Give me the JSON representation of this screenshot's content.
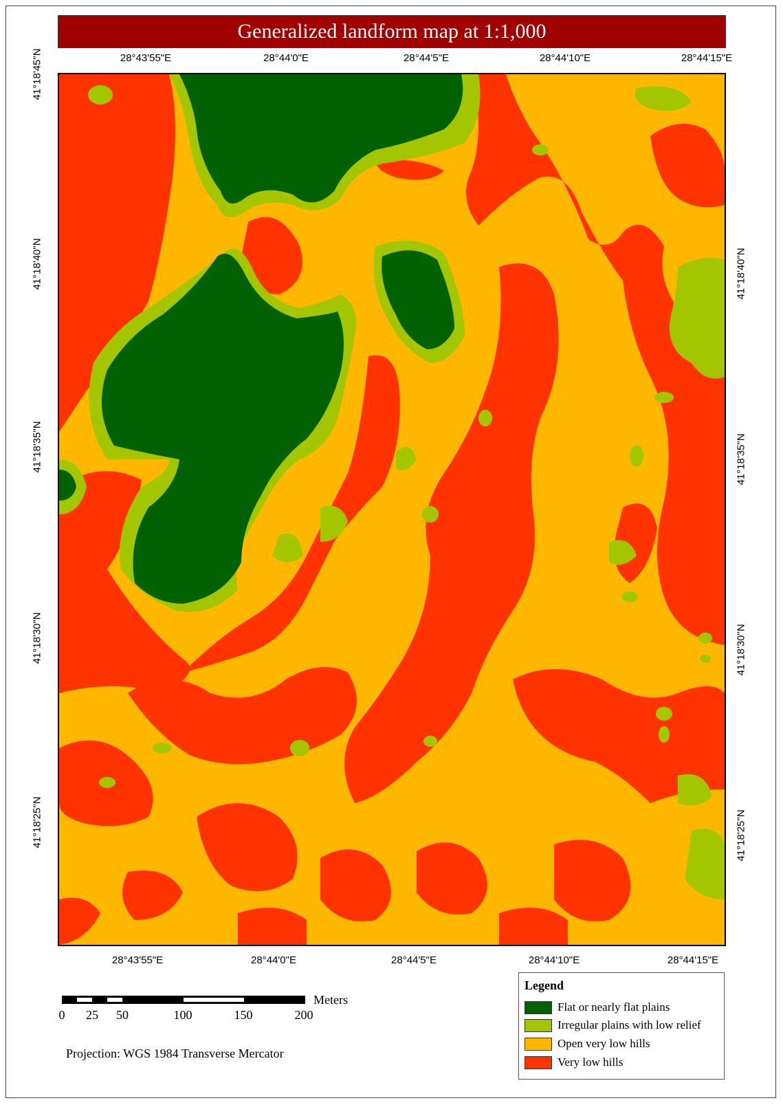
{
  "title": "Generalized landform map at 1:1,000",
  "colors": {
    "title_bg": "#a00000",
    "flat": "#006100",
    "irregular": "#a3c600",
    "open_hills": "#ffb700",
    "low_hills": "#ff3300"
  },
  "coordinates": {
    "longitude_labels": [
      "28°43'55\"E",
      "28°44'0\"E",
      "28°44'5\"E",
      "28°44'10\"E",
      "28°44'15\"E"
    ],
    "latitude_labels": [
      "41°18'45\"N",
      "41°18'40\"N",
      "41°18'35\"N",
      "41°18'30\"N",
      "41°18'25\"N"
    ]
  },
  "scale_bar": {
    "ticks": [
      "0",
      "25",
      "50",
      "100",
      "150",
      "200"
    ],
    "unit": "Meters"
  },
  "projection": "Projection: WGS 1984 Transverse Mercator",
  "legend": {
    "title": "Legend",
    "items": [
      {
        "label": "Flat or nearly flat plains",
        "color": "#006100"
      },
      {
        "label": "Irregular plains with low relief",
        "color": "#a3c600"
      },
      {
        "label": "Open very low hills",
        "color": "#ffb700"
      },
      {
        "label": "Very low hills",
        "color": "#ff3300"
      }
    ]
  }
}
